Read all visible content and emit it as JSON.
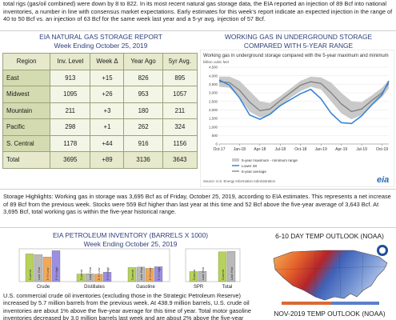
{
  "intro_text": "total rigs (gas/oil combined) were down by 8 to 822. In its most recent natural gas storage data, the EIA reported an injection of 89 Bcf into national inventories, a number in line with consensus market expectations. Early estimates for this week's report indicate an expected injection in the range of 40 to 50 Bcf vs. an injection of 63 Bcf for the same week last year and a 5-yr avg. injection of 57 Bcf.",
  "storage_report": {
    "title": "EIA NATURAL GAS STORAGE REPORT",
    "subtitle": "Week Ending October 25, 2019",
    "headers": [
      "Region",
      "Inv. Level",
      "Week Δ",
      "Year Ago",
      "5yr Avg."
    ],
    "rows": [
      [
        "East",
        "913",
        "+15",
        "826",
        "895"
      ],
      [
        "Midwest",
        "1095",
        "+26",
        "953",
        "1057"
      ],
      [
        "Mountain",
        "211",
        "+3",
        "180",
        "211"
      ],
      [
        "Pacific",
        "298",
        "+1",
        "262",
        "324"
      ],
      [
        "S. Central",
        "1178",
        "+44",
        "916",
        "1156"
      ],
      [
        "Total",
        "3695",
        "+89",
        "3136",
        "3643"
      ]
    ]
  },
  "working_gas": {
    "title": "WORKING GAS IN UNDERGROUND STORAGE",
    "subtitle": "COMPARED WITH 5-YEAR RANGE",
    "inner_title": "Working gas in underground storage compared with the 5-year maximum and minimum",
    "unit_label": "billion cubic feet",
    "legend": [
      "5-year maximum - minimum range",
      "Lower 48",
      "5-year average"
    ],
    "source": "Source: U.S. Energy Information Administration",
    "logo_text": "eia"
  },
  "highlights_text": "Storage Highlights: Working gas in storage was 3,695 Bcf as of Friday, October 25, 2019, according to EIA estimates. This represents a net increase of 89 Bcf from the previous week. Stocks were 559 Bcf higher than last year at this time and 52 Bcf above the five-year average of 3,643 Bcf. At 3,695 Bcf, total working gas is within the five-year historical range.",
  "petroleum": {
    "title": "EIA PETROLEUM INVENTORY (BARRELS X 1000)",
    "subtitle": "Week Ending October 25, 2019",
    "bar_labels": [
      "Current",
      "Last Year",
      "5 Yr Low",
      "5 Yr High"
    ]
  },
  "crude_text": "U.S. commercial crude oil inventories (excluding those in the Strategic Petroleum Reserve) increased by 5.7 million barrels from the previous week. At 438.9 million barrels, U.S. crude oil inventories are about 1% above the five-year average for this time of year. Total motor gasoline inventories decreased by 3.0 million barrels last week and are about 2% above the five-year",
  "outlook_6_10": {
    "title": "6-10 DAY TEMP OUTLOOK (NOAA)"
  },
  "outlook_month": {
    "title": "NOV-2019 TEMP OUTLOOK (NOAA)"
  },
  "chart_data": [
    {
      "type": "area",
      "x_ticks": [
        "Oct-17",
        "Jan-18",
        "Apr-18",
        "Jul-18",
        "Oct-18",
        "Jan-19",
        "Apr-19",
        "Jul-19",
        "Oct-19"
      ],
      "y_ticks": [
        "4,500",
        "4,000",
        "3,500",
        "3,000",
        "2,500",
        "2,000",
        "1,500",
        "1,000",
        "500",
        "0"
      ],
      "ylim": [
        0,
        4500
      ],
      "x_months": [
        0,
        1.5,
        3,
        4.5,
        6,
        7.5,
        9,
        10.5,
        12,
        13.5,
        15,
        16.5,
        18,
        19.5,
        21,
        22.5,
        24,
        25
      ],
      "series": [
        {
          "name": "5-year maximum - minimum range",
          "upper": [
            3950,
            3950,
            3700,
            3100,
            2500,
            2400,
            2800,
            3250,
            3700,
            3950,
            3900,
            3600,
            3000,
            2500,
            2450,
            2850,
            3300,
            3750
          ],
          "lower": [
            3350,
            3300,
            2700,
            1900,
            1550,
            1700,
            2200,
            2700,
            3100,
            3350,
            3200,
            2500,
            1800,
            1450,
            1700,
            2250,
            2750,
            3250
          ]
        },
        {
          "name": "5-year average",
          "values": [
            3650,
            3600,
            3150,
            2450,
            1950,
            2050,
            2550,
            3000,
            3450,
            3650,
            3550,
            3000,
            2350,
            1900,
            2050,
            2550,
            3000,
            3550
          ]
        },
        {
          "name": "Lower 48",
          "values": [
            3750,
            3450,
            2700,
            1700,
            1450,
            1750,
            2250,
            2600,
            2950,
            3200,
            2650,
            1800,
            1250,
            1200,
            1650,
            2300,
            2900,
            3695
          ]
        }
      ]
    },
    {
      "type": "bar",
      "categories": [
        "Crude",
        "Distillates",
        "Gasoline",
        "SPR",
        "Total"
      ],
      "series": [
        {
          "name": "Current",
          "values": [
            438900,
            120000,
            223000,
            640000,
            1910000
          ]
        },
        {
          "name": "Last Year",
          "values": [
            426000,
            125000,
            230000,
            655000,
            1940000
          ]
        },
        {
          "name": "5 Yr Low",
          "values": [
            390000,
            118000,
            210000,
            633000,
            1850000
          ]
        },
        {
          "name": "5 Yr High",
          "values": [
            490000,
            150000,
            236000,
            695000,
            2000000
          ]
        }
      ]
    }
  ]
}
